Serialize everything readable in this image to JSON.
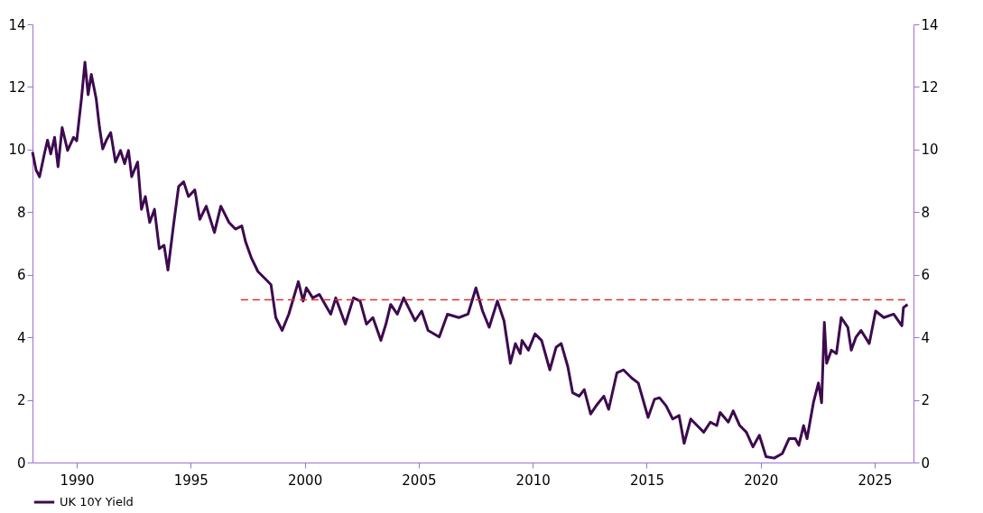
{
  "chart_data": {
    "type": "line",
    "xlim": [
      1988.06,
      2026.7
    ],
    "xticks": [
      1990,
      1995,
      2000,
      2005,
      2010,
      2015,
      2020,
      2025
    ],
    "ylim": [
      0,
      14
    ],
    "yticks": [
      0,
      2,
      4,
      6,
      8,
      10,
      12,
      14
    ],
    "y2lim": [
      0,
      14
    ],
    "y2ticks": [
      0,
      2,
      4,
      6,
      8,
      10,
      12,
      14
    ],
    "legend": "bottom left",
    "grid": false,
    "series": [
      {
        "name": "UK 10Y Yield",
        "color": "#3d0a4f",
        "x": [
          1988.06,
          1988.22,
          1988.37,
          1988.58,
          1988.72,
          1988.86,
          1989.03,
          1989.18,
          1989.36,
          1989.6,
          1989.86,
          1990.0,
          1990.21,
          1990.36,
          1990.5,
          1990.64,
          1990.85,
          1991.0,
          1991.14,
          1991.32,
          1991.49,
          1991.7,
          1991.92,
          1992.1,
          1992.27,
          1992.41,
          1992.67,
          1992.84,
          1993.01,
          1993.2,
          1993.41,
          1993.62,
          1993.83,
          1994.0,
          1994.26,
          1994.47,
          1994.69,
          1994.9,
          1995.18,
          1995.4,
          1995.68,
          1996.04,
          1996.32,
          1996.68,
          1996.96,
          1997.24,
          1997.41,
          1997.67,
          1997.95,
          1998.24,
          1998.52,
          1998.73,
          1999.01,
          1999.3,
          1999.72,
          1999.93,
          2000.07,
          2000.35,
          2000.64,
          2001.14,
          2001.36,
          2001.78,
          2002.14,
          2002.43,
          2002.71,
          2002.99,
          2003.34,
          2003.56,
          2003.77,
          2004.06,
          2004.34,
          2004.84,
          2005.13,
          2005.41,
          2005.9,
          2006.26,
          2006.76,
          2007.16,
          2007.51,
          2007.8,
          2008.09,
          2008.45,
          2008.74,
          2009.02,
          2009.24,
          2009.45,
          2009.53,
          2009.81,
          2010.1,
          2010.39,
          2010.75,
          2011.03,
          2011.25,
          2011.54,
          2011.75,
          2012.04,
          2012.26,
          2012.54,
          2012.83,
          2013.12,
          2013.33,
          2013.69,
          2013.98,
          2014.34,
          2014.63,
          2015.06,
          2015.34,
          2015.56,
          2015.85,
          2016.14,
          2016.42,
          2016.64,
          2016.93,
          2017.21,
          2017.5,
          2017.79,
          2018.07,
          2018.22,
          2018.58,
          2018.79,
          2019.08,
          2019.37,
          2019.66,
          2019.94,
          2020.23,
          2020.59,
          2020.95,
          2021.24,
          2021.52,
          2021.67,
          2021.88,
          2022.03,
          2022.31,
          2022.53,
          2022.67,
          2022.79,
          2022.89,
          2023.1,
          2023.32,
          2023.53,
          2023.82,
          2023.97,
          2024.18,
          2024.4,
          2024.76,
          2025.04,
          2025.4,
          2025.83,
          2026.19,
          2026.26,
          2026.44
        ],
        "values": [
          9.92,
          9.34,
          9.13,
          9.86,
          10.3,
          9.86,
          10.39,
          9.45,
          10.7,
          9.97,
          10.39,
          10.28,
          11.64,
          12.79,
          11.75,
          12.4,
          11.64,
          10.7,
          10.02,
          10.33,
          10.54,
          9.6,
          9.97,
          9.55,
          9.97,
          9.13,
          9.6,
          8.09,
          8.5,
          7.67,
          8.09,
          6.83,
          6.94,
          6.15,
          7.67,
          8.82,
          8.97,
          8.5,
          8.71,
          7.77,
          8.19,
          7.35,
          8.19,
          7.67,
          7.46,
          7.56,
          7.04,
          6.52,
          6.1,
          5.89,
          5.68,
          4.63,
          4.22,
          4.74,
          5.78,
          5.16,
          5.58,
          5.26,
          5.37,
          4.74,
          5.26,
          4.42,
          5.26,
          5.16,
          4.42,
          4.63,
          3.9,
          4.42,
          5.05,
          4.74,
          5.26,
          4.53,
          4.84,
          4.22,
          4.01,
          4.74,
          4.63,
          4.74,
          5.58,
          4.84,
          4.32,
          5.16,
          4.53,
          3.17,
          3.8,
          3.48,
          3.9,
          3.59,
          4.11,
          3.9,
          2.96,
          3.69,
          3.8,
          3.06,
          2.23,
          2.12,
          2.33,
          1.55,
          1.86,
          2.12,
          1.7,
          2.86,
          2.96,
          2.7,
          2.54,
          1.44,
          2.02,
          2.07,
          1.81,
          1.39,
          1.5,
          0.61,
          1.39,
          1.18,
          0.97,
          1.29,
          1.18,
          1.6,
          1.29,
          1.65,
          1.18,
          0.97,
          0.5,
          0.87,
          0.19,
          0.14,
          0.29,
          0.76,
          0.76,
          0.55,
          1.18,
          0.76,
          1.91,
          2.54,
          1.91,
          4.48,
          3.17,
          3.59,
          3.48,
          4.63,
          4.32,
          3.59,
          4.01,
          4.22,
          3.8,
          4.84,
          4.63,
          4.74,
          4.37,
          4.95,
          5.05
        ]
      },
      {
        "color": "#e0302a",
        "line_style": "dashed",
        "x": [
          1997.2,
          2026.4
        ],
        "values": [
          5.2,
          5.2
        ]
      }
    ]
  }
}
